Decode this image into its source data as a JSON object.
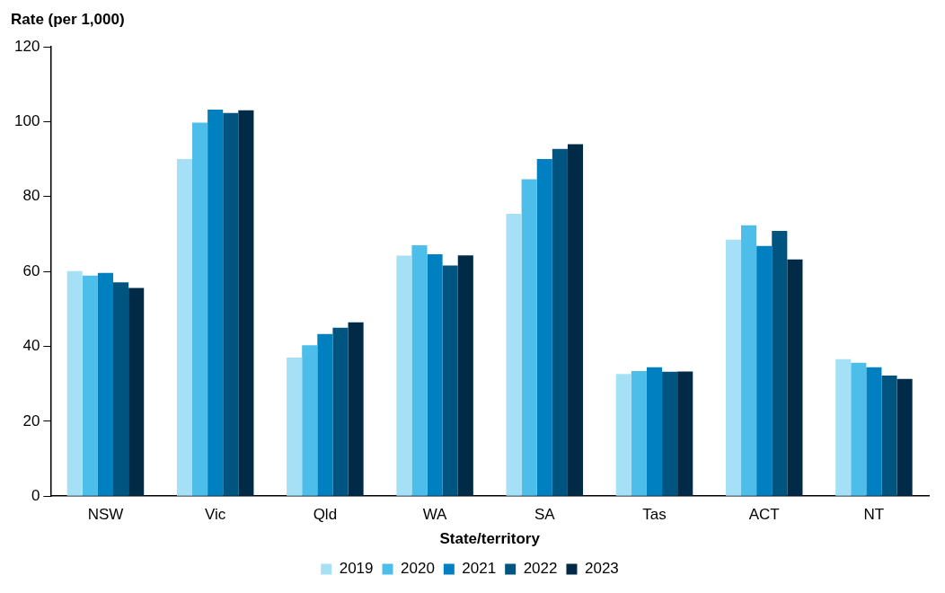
{
  "chart_data": {
    "type": "bar",
    "ylabel": "Rate (per 1,000)",
    "xlabel": "State/territory",
    "categories": [
      "NSW",
      "Vic",
      "Qld",
      "WA",
      "SA",
      "Tas",
      "ACT",
      "NT"
    ],
    "series": [
      {
        "name": "2019",
        "color": "#a6e0f7",
        "values": [
          60.1,
          90,
          37,
          64.2,
          75.4,
          32.6,
          68.5,
          36.6
        ]
      },
      {
        "name": "2020",
        "color": "#4dbde9",
        "values": [
          58.9,
          99.7,
          40.3,
          67,
          84.6,
          33.4,
          72.3,
          35.6
        ]
      },
      {
        "name": "2021",
        "color": "#0080c0",
        "values": [
          59.6,
          103.2,
          43.3,
          64.6,
          90,
          34.4,
          66.8,
          34.4
        ]
      },
      {
        "name": "2022",
        "color": "#005580",
        "values": [
          57.1,
          102.3,
          45,
          61.6,
          92.7,
          33.2,
          70.8,
          32.2
        ]
      },
      {
        "name": "2023",
        "color": "#002a45",
        "values": [
          55.6,
          103,
          46.4,
          64.3,
          94,
          33.3,
          63.2,
          31.3
        ]
      }
    ],
    "ylim": [
      0,
      120
    ],
    "yticks": [
      0,
      20,
      40,
      60,
      80,
      100,
      120
    ],
    "grid": false,
    "legend": "bottom"
  }
}
